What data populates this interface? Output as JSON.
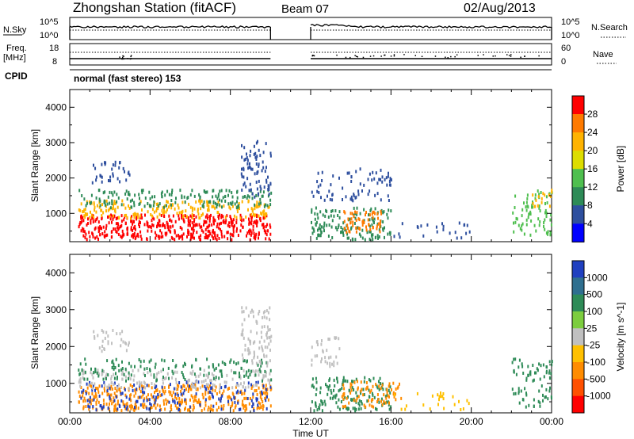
{
  "header": {
    "station": "Zhongshan Station (fitACF)",
    "beam": "Beam 07",
    "date": "02/Aug/2013"
  },
  "panels": {
    "nsky_label": "N.Sky",
    "nsearch_label": "N.Search",
    "nsky_ticks": [
      "10^5",
      "10^0"
    ],
    "nsearch_ticks": [
      "10^5",
      "10^0"
    ],
    "freq_label_1": "Freq.",
    "freq_label_2": "[MHz]",
    "freq_ticks": [
      "18",
      "8"
    ],
    "nave_label": "Nave",
    "nave_ticks": [
      "60",
      "0"
    ],
    "cpid_label": "CPID",
    "cpid_value": "normal (fast stereo) 153"
  },
  "chart_data": [
    {
      "type": "heatmap",
      "name": "power",
      "ylabel": "Slant Range [km]",
      "xlabel": "Time UT",
      "x_ticks": [
        "00:00",
        "04:00",
        "08:00",
        "12:00",
        "16:00",
        "20:00",
        "00:00"
      ],
      "y_ticks": [
        1000,
        2000,
        3000,
        4000
      ],
      "ylim": [
        200,
        4500
      ],
      "xlim_hours": [
        0,
        24
      ],
      "colorbar": {
        "label": "Power [dB]",
        "ticks": [
          "28",
          "24",
          "20",
          "16",
          "12",
          "8",
          "4"
        ],
        "colors": [
          "#ff0000",
          "#ff7a00",
          "#ffb300",
          "#dddd00",
          "#4fbf4f",
          "#2e8b57",
          "#2e4f9e",
          "#0000ff"
        ]
      },
      "regions": [
        {
          "t": [
            0.4,
            10.0
          ],
          "r": [
            300,
            1000
          ],
          "color": "#ff0000",
          "density": 0.85
        },
        {
          "t": [
            0.4,
            10.0
          ],
          "r": [
            900,
            1400
          ],
          "color": "#ffb300",
          "density": 0.55
        },
        {
          "t": [
            0.4,
            10.0
          ],
          "r": [
            1200,
            1700
          ],
          "color": "#2e8b57",
          "density": 0.45
        },
        {
          "t": [
            1.0,
            3.0
          ],
          "r": [
            1900,
            2500
          ],
          "color": "#2e4f9e",
          "density": 0.35
        },
        {
          "t": [
            8.5,
            10.0
          ],
          "r": [
            1500,
            3100
          ],
          "color": "#2e4f9e",
          "density": 0.4
        },
        {
          "t": [
            12.0,
            16.0
          ],
          "r": [
            300,
            1200
          ],
          "color": "#2e8b57",
          "density": 0.5
        },
        {
          "t": [
            13.5,
            15.5
          ],
          "r": [
            500,
            1100
          ],
          "color": "#ff7a00",
          "density": 0.6
        },
        {
          "t": [
            12.0,
            16.0
          ],
          "r": [
            1400,
            2300
          ],
          "color": "#2e4f9e",
          "density": 0.25
        },
        {
          "t": [
            16.0,
            20.0
          ],
          "r": [
            300,
            800
          ],
          "color": "#2e4f9e",
          "density": 0.15
        },
        {
          "t": [
            22.0,
            24.0
          ],
          "r": [
            400,
            1700
          ],
          "color": "#4fbf4f",
          "density": 0.35
        },
        {
          "t": [
            23.0,
            24.0
          ],
          "r": [
            1200,
            1700
          ],
          "color": "#ffb300",
          "density": 0.4
        }
      ]
    },
    {
      "type": "heatmap",
      "name": "velocity",
      "ylabel": "Slant Range [km]",
      "xlabel": "Time UT",
      "x_ticks": [
        "00:00",
        "04:00",
        "08:00",
        "12:00",
        "16:00",
        "20:00",
        "00:00"
      ],
      "y_ticks": [
        1000,
        2000,
        3000,
        4000
      ],
      "ylim": [
        200,
        4500
      ],
      "xlim_hours": [
        0,
        24
      ],
      "colorbar": {
        "label": "Velocity [m s^-1]",
        "ticks": [
          "1000",
          "500",
          "100",
          "25",
          "-25",
          "-100",
          "-500",
          "-1000"
        ],
        "colors": [
          "#2040c0",
          "#2f6f8f",
          "#2e8b57",
          "#7ccd3e",
          "#c0c0c0",
          "#ffc000",
          "#ff8c00",
          "#ff5000",
          "#ff0000"
        ]
      },
      "regions": [
        {
          "t": [
            0.4,
            10.0
          ],
          "r": [
            300,
            1000
          ],
          "color": "#ff8c00",
          "density": 0.7
        },
        {
          "t": [
            0.4,
            10.0
          ],
          "r": [
            300,
            1100
          ],
          "color": "#2040c0",
          "density": 0.25
        },
        {
          "t": [
            0.4,
            10.0
          ],
          "r": [
            900,
            1400
          ],
          "color": "#c0c0c0",
          "density": 0.4
        },
        {
          "t": [
            0.4,
            10.0
          ],
          "r": [
            1100,
            1700
          ],
          "color": "#2e8b57",
          "density": 0.3
        },
        {
          "t": [
            1.0,
            3.0
          ],
          "r": [
            1900,
            2500
          ],
          "color": "#c0c0c0",
          "density": 0.3
        },
        {
          "t": [
            8.5,
            10.0
          ],
          "r": [
            1500,
            3100
          ],
          "color": "#c0c0c0",
          "density": 0.45
        },
        {
          "t": [
            12.0,
            16.0
          ],
          "r": [
            300,
            1200
          ],
          "color": "#2e8b57",
          "density": 0.5
        },
        {
          "t": [
            13.5,
            16.5
          ],
          "r": [
            400,
            1100
          ],
          "color": "#ff8c00",
          "density": 0.45
        },
        {
          "t": [
            12.0,
            13.5
          ],
          "r": [
            1500,
            2300
          ],
          "color": "#c0c0c0",
          "density": 0.35
        },
        {
          "t": [
            16.0,
            20.0
          ],
          "r": [
            300,
            800
          ],
          "color": "#ffc000",
          "density": 0.15
        },
        {
          "t": [
            22.0,
            24.0
          ],
          "r": [
            400,
            1700
          ],
          "color": "#2e8b57",
          "density": 0.35
        }
      ]
    }
  ]
}
